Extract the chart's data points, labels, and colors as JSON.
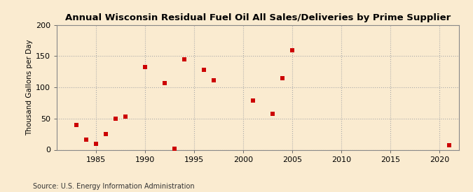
{
  "title": "Annual Wisconsin Residual Fuel Oil All Sales/Deliveries by Prime Supplier",
  "ylabel": "Thousand Gallons per Day",
  "source": "Source: U.S. Energy Information Administration",
  "background_color": "#faebd0",
  "plot_background_color": "#faebd0",
  "marker_color": "#cc0000",
  "xlim": [
    1981,
    2022
  ],
  "ylim": [
    0,
    200
  ],
  "xticks": [
    1985,
    1990,
    1995,
    2000,
    2005,
    2010,
    2015,
    2020
  ],
  "yticks": [
    0,
    50,
    100,
    150,
    200
  ],
  "data": {
    "years": [
      1983,
      1984,
      1985,
      1986,
      1987,
      1988,
      1990,
      1992,
      1993,
      1994,
      1996,
      1997,
      2001,
      2003,
      2004,
      2005,
      2021
    ],
    "values": [
      40,
      16,
      9,
      25,
      50,
      53,
      133,
      107,
      2,
      145,
      128,
      111,
      79,
      58,
      115,
      160,
      7
    ]
  }
}
